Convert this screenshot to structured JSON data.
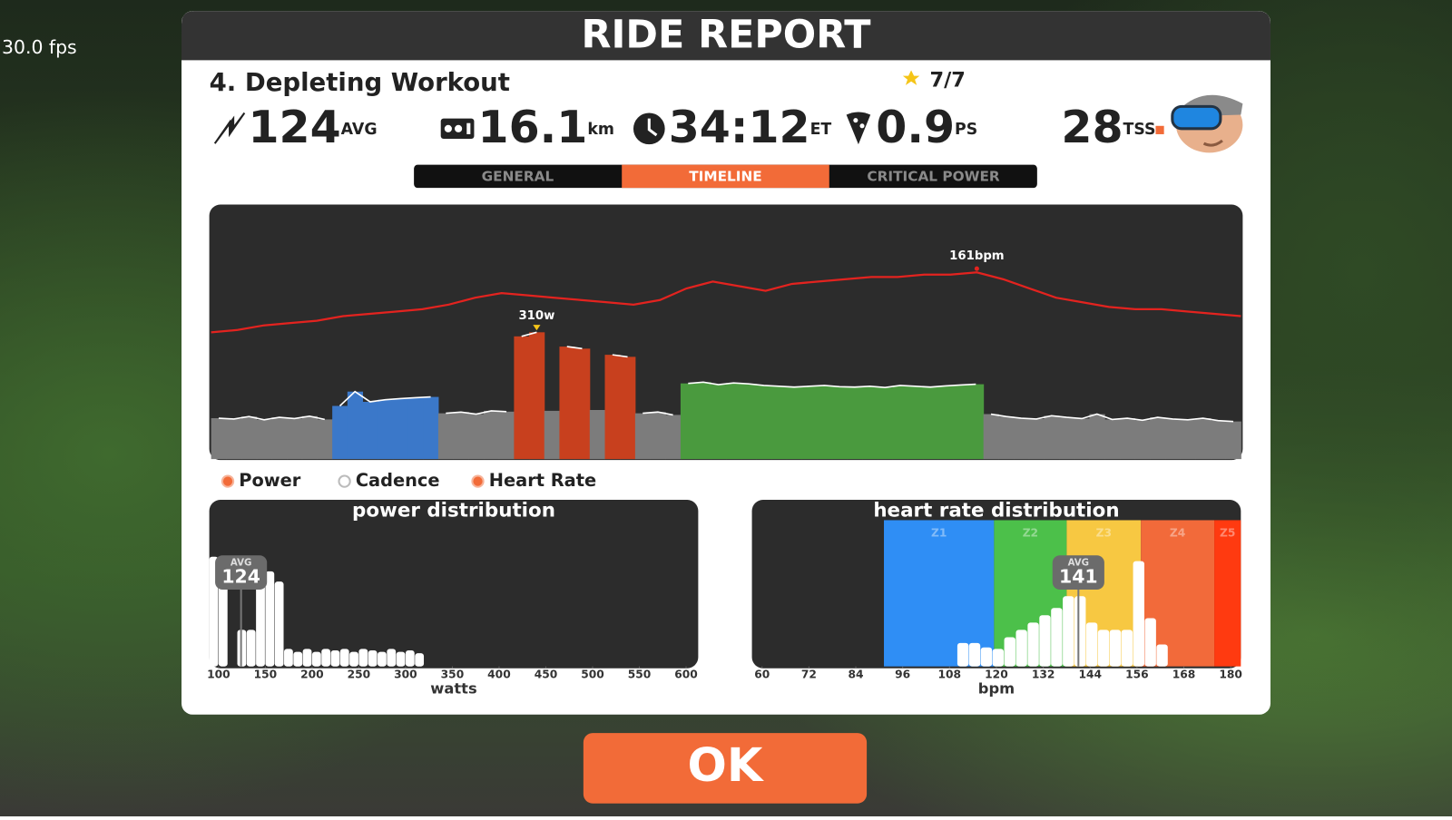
{
  "fps": "30.0 fps",
  "header": {
    "title": "RIDE REPORT"
  },
  "workout": {
    "name": "4. Depleting Workout",
    "stars": "7/7"
  },
  "stats": [
    {
      "value": "124",
      "unit": "AVG"
    },
    {
      "value": "16.1",
      "unit": "km"
    },
    {
      "value": "34:12",
      "unit": "ET"
    },
    {
      "value": "0.9",
      "unit": "PS"
    },
    {
      "value": "28",
      "unit": "TSS"
    }
  ],
  "tabs": [
    {
      "label": "GENERAL",
      "active": false
    },
    {
      "label": "TIMELINE",
      "active": true
    },
    {
      "label": "CRITICAL POWER",
      "active": false
    }
  ],
  "legend": [
    {
      "label": "Power",
      "on": true
    },
    {
      "label": "Cadence",
      "on": false
    },
    {
      "label": "Heart Rate",
      "on": true
    }
  ],
  "chart_data": [
    {
      "type": "timeline",
      "ylim": [
        0,
        620
      ],
      "y2lim": [
        80,
        190
      ],
      "power_segments": [
        {
          "color": "#7c7c7c",
          "values": [
            100,
            98,
            104,
            96,
            102,
            99,
            105,
            97
          ]
        },
        {
          "color": "#3b78c9",
          "values": [
            130,
            165,
            140,
            145,
            148,
            150,
            152
          ]
        },
        {
          "color": "#7c7c7c",
          "values": [
            112,
            115,
            110,
            118,
            116
          ]
        },
        {
          "color": "#c8401e",
          "values": [
            300,
            310
          ]
        },
        {
          "color": "#7c7c7c",
          "values": [
            118
          ]
        },
        {
          "color": "#c8401e",
          "values": [
            275,
            270
          ]
        },
        {
          "color": "#7c7c7c",
          "values": [
            120
          ]
        },
        {
          "color": "#c8401e",
          "values": [
            255,
            250
          ]
        },
        {
          "color": "#7c7c7c",
          "values": [
            112,
            115,
            108
          ]
        },
        {
          "color": "#4a9a3e",
          "values": [
            185,
            188,
            182,
            186,
            184,
            180,
            178,
            176,
            178,
            180,
            177,
            176,
            178,
            175,
            180,
            178,
            176,
            179,
            181,
            183
          ]
        },
        {
          "color": "#7c7c7c",
          "values": [
            110,
            104,
            100,
            98,
            106,
            102,
            99,
            110,
            97,
            100,
            95,
            102,
            98,
            96,
            100,
            94,
            92
          ]
        }
      ],
      "heart_rate": {
        "color": "#e3231f",
        "axis": "y2",
        "values": [
          135,
          136,
          138,
          139,
          140,
          142,
          143,
          144,
          145,
          147,
          150,
          152,
          151,
          150,
          149,
          148,
          147,
          149,
          154,
          157,
          155,
          153,
          156,
          157,
          158,
          159,
          159,
          160,
          160,
          161,
          158,
          154,
          150,
          148,
          146,
          145,
          145,
          144,
          143,
          142
        ]
      },
      "peak_power_label": "310w",
      "peak_hr_label": "161bpm"
    },
    {
      "type": "histogram",
      "title": "power distribution",
      "x_label": "watts",
      "color": "#ffffff",
      "xlim": [
        90,
        613
      ],
      "ylim": [
        0,
        100
      ],
      "xticks": [
        100,
        150,
        200,
        250,
        300,
        350,
        400,
        450,
        500,
        550,
        600
      ],
      "bins": [
        90,
        100,
        110,
        120,
        130,
        140,
        150,
        160,
        170,
        180,
        190,
        200,
        210,
        220,
        230,
        240,
        250,
        260,
        270,
        280,
        290,
        300,
        310,
        320
      ],
      "counts": [
        75,
        75,
        0,
        25,
        25,
        72,
        65,
        58,
        12,
        10,
        12,
        10,
        12,
        11,
        12,
        10,
        12,
        11,
        10,
        12,
        10,
        11,
        9
      ],
      "avg": {
        "label": "AVG",
        "value": 124
      }
    },
    {
      "type": "histogram",
      "title": "heart rate distribution",
      "x_label": "bpm",
      "color": "#ffffff",
      "xlim": [
        57.4,
        182.6
      ],
      "ylim": [
        0,
        100
      ],
      "xticks": [
        60,
        72,
        84,
        96,
        108,
        120,
        132,
        144,
        156,
        168,
        180
      ],
      "zones": [
        {
          "name": "Z1",
          "color": "#2f8ef5",
          "range": [
            91.2,
            119.4
          ]
        },
        {
          "name": "Z2",
          "color": "#4cc04a",
          "range": [
            119.4,
            138
          ]
        },
        {
          "name": "Z3",
          "color": "#f7c842",
          "range": [
            138,
            157
          ]
        },
        {
          "name": "Z4",
          "color": "#f26a3a",
          "range": [
            157,
            175.8
          ]
        },
        {
          "name": "Z5",
          "color": "#ff3a10",
          "range": [
            175.8,
            182.6
          ]
        }
      ],
      "bins": [
        110,
        113,
        116,
        119,
        122,
        125,
        128,
        131,
        134,
        137,
        140,
        143,
        146,
        149,
        152,
        155,
        158,
        161,
        164
      ],
      "counts": [
        16,
        16,
        13,
        12,
        20,
        25,
        30,
        35,
        40,
        48,
        48,
        30,
        25,
        25,
        25,
        72,
        33,
        15
      ],
      "avg": {
        "label": "AVG",
        "value": 141
      }
    }
  ],
  "button": "OK"
}
